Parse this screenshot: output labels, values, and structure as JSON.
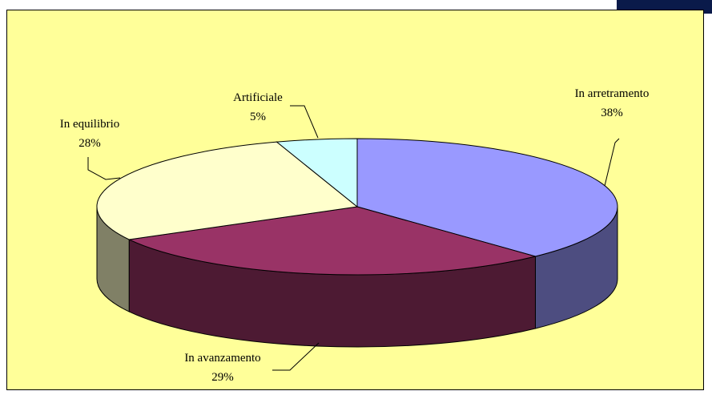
{
  "chart_data": {
    "type": "pie3d",
    "categories": [
      "In arretramento",
      "In avanzamento",
      "In equilibrio",
      "Artificiale"
    ],
    "values": [
      38,
      29,
      28,
      5
    ],
    "value_labels": [
      "38%",
      "29%",
      "28%",
      "5%"
    ],
    "colors": [
      "#9999FF",
      "#993366",
      "#FFFFCC",
      "#CCFFFF"
    ],
    "background": "#FFFF99"
  }
}
